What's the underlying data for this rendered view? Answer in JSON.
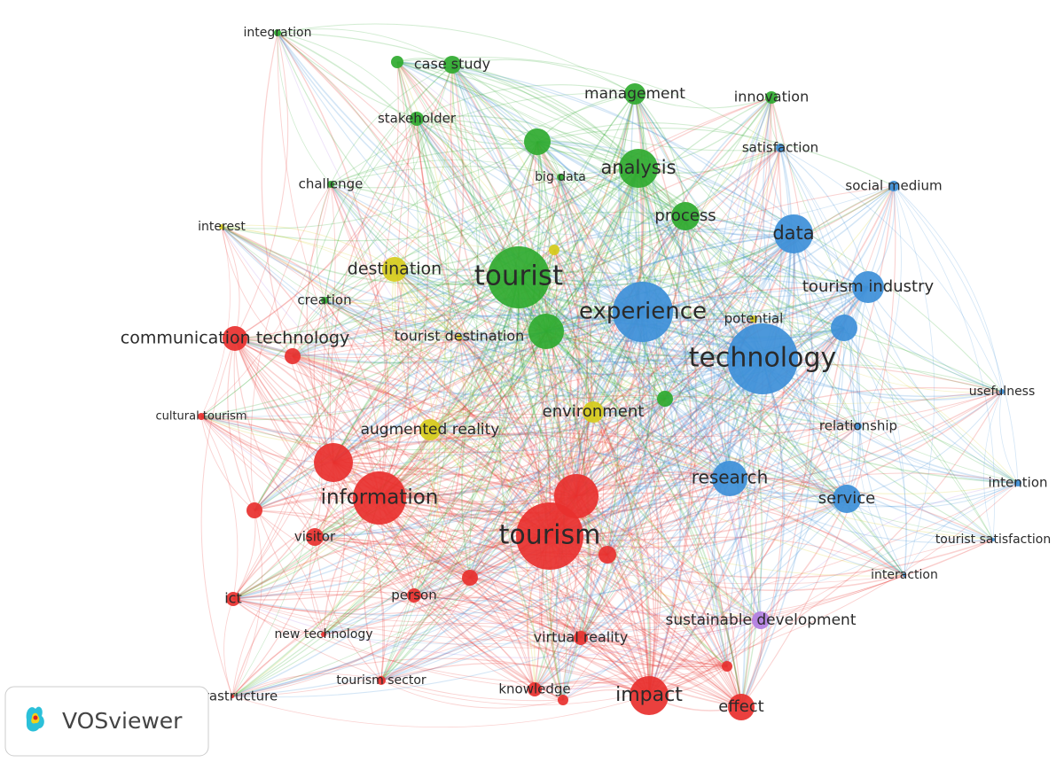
{
  "clusters": [
    {
      "color": "#e8302e",
      "nodes": [
        {
          "label": "tourism"
        },
        {
          "label": "information"
        },
        {
          "label": "communication technology"
        },
        {
          "label": "impact"
        },
        {
          "label": "effect"
        },
        {
          "label": "knowledge"
        },
        {
          "label": "virtual reality"
        },
        {
          "label": "person"
        },
        {
          "label": "visitor"
        },
        {
          "label": "ict"
        },
        {
          "label": "new technology"
        },
        {
          "label": "tourism sector"
        },
        {
          "label": "infrastructure"
        },
        {
          "label": "cultural tourism"
        }
      ]
    },
    {
      "color": "#d6cc1c",
      "nodes": [
        {
          "label": "destination"
        },
        {
          "label": "augmented reality"
        },
        {
          "label": "environment"
        },
        {
          "label": "tourist destination"
        },
        {
          "label": "interest"
        },
        {
          "label": "potential"
        }
      ]
    },
    {
      "color": "#2faa2f",
      "nodes": [
        {
          "label": "tourist"
        },
        {
          "label": "analysis"
        },
        {
          "label": "process"
        },
        {
          "label": "management"
        },
        {
          "label": "big data"
        },
        {
          "label": "stakeholder"
        },
        {
          "label": "case study"
        },
        {
          "label": "innovation"
        },
        {
          "label": "integration"
        },
        {
          "label": "challenge"
        },
        {
          "label": "creation"
        }
      ]
    },
    {
      "color": "#3d8fd8",
      "nodes": [
        {
          "label": "technology"
        },
        {
          "label": "experience"
        },
        {
          "label": "data"
        },
        {
          "label": "tourism industry"
        },
        {
          "label": "research"
        },
        {
          "label": "service"
        },
        {
          "label": "relationship"
        },
        {
          "label": "usefulness"
        },
        {
          "label": "intention"
        },
        {
          "label": "tourist satisfaction"
        },
        {
          "label": "interaction"
        },
        {
          "label": "satisfaction"
        },
        {
          "label": "social medium"
        }
      ]
    },
    {
      "color": "#b27fe2",
      "nodes": [
        {
          "label": "sustainable development"
        }
      ]
    }
  ],
  "logo": {
    "text": "VOSviewer"
  }
}
